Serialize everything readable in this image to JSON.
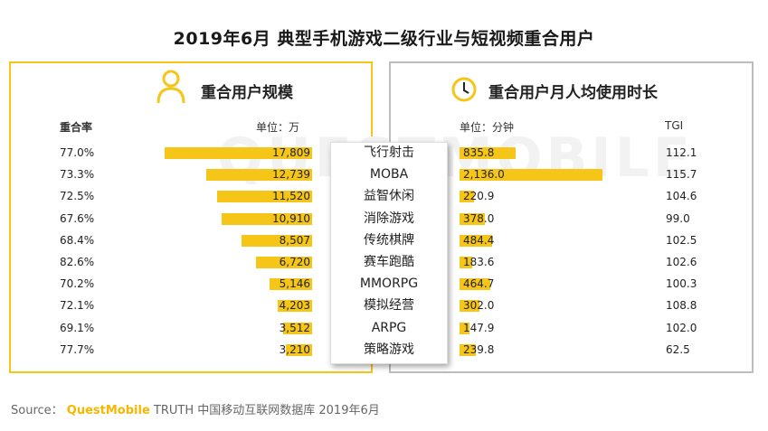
{
  "title": "2019年6月 典型手机游戏二级行业与短视频重合用户",
  "watermark": "QUESTMOBILE",
  "left_panel": {
    "title": "重合用户规模",
    "col_rate": "重合率",
    "unit": "单位：万",
    "icon": "user-icon"
  },
  "right_panel": {
    "title": "重合用户月人均使用时长",
    "unit": "单位：分钟",
    "col_tgi": "TGI",
    "icon": "clock-icon"
  },
  "source": {
    "prefix": "Source：",
    "brand": "QuestMobile",
    "rest": "TRUTH 中国移动互联网数据库 2019年6月"
  },
  "colors": {
    "bar": "#f5c518",
    "left_border": "#f5c518",
    "right_border": "#bdbdbd"
  },
  "chart_data": [
    {
      "type": "bar",
      "title": "重合用户规模",
      "unit": "单位：万",
      "categories": [
        "飞行射击",
        "MOBA",
        "益智休闲",
        "消除游戏",
        "传统棋牌",
        "赛车跑酷",
        "MMORPG",
        "模拟经营",
        "ARPG",
        "策略游戏"
      ],
      "values": [
        17809,
        12739,
        11520,
        10910,
        8507,
        6720,
        5146,
        4203,
        3512,
        3210
      ],
      "value_labels": [
        "17,809",
        "12,739",
        "11,520",
        "10,910",
        "8,507",
        "6,720",
        "5,146",
        "4,203",
        "3,512",
        "3,210"
      ],
      "overlap_rate": [
        "77.0%",
        "73.3%",
        "72.5%",
        "67.6%",
        "68.4%",
        "82.6%",
        "70.2%",
        "72.1%",
        "69.1%",
        "77.7%"
      ]
    },
    {
      "type": "bar",
      "title": "重合用户月人均使用时长",
      "unit": "单位：分钟",
      "categories": [
        "飞行射击",
        "MOBA",
        "益智休闲",
        "消除游戏",
        "传统棋牌",
        "赛车跑酷",
        "MMORPG",
        "模拟经营",
        "ARPG",
        "策略游戏"
      ],
      "values": [
        835.8,
        2136.0,
        220.9,
        378.0,
        484.4,
        183.6,
        464.7,
        302.0,
        147.9,
        239.8
      ],
      "value_labels": [
        "835.8",
        "2,136.0",
        "220.9",
        "378.0",
        "484.4",
        "183.6",
        "464.7",
        "302.0",
        "147.9",
        "239.8"
      ],
      "tgi": [
        "112.1",
        "115.7",
        "104.6",
        "99.0",
        "102.5",
        "102.6",
        "100.3",
        "108.8",
        "102.0",
        "62.5"
      ]
    }
  ]
}
